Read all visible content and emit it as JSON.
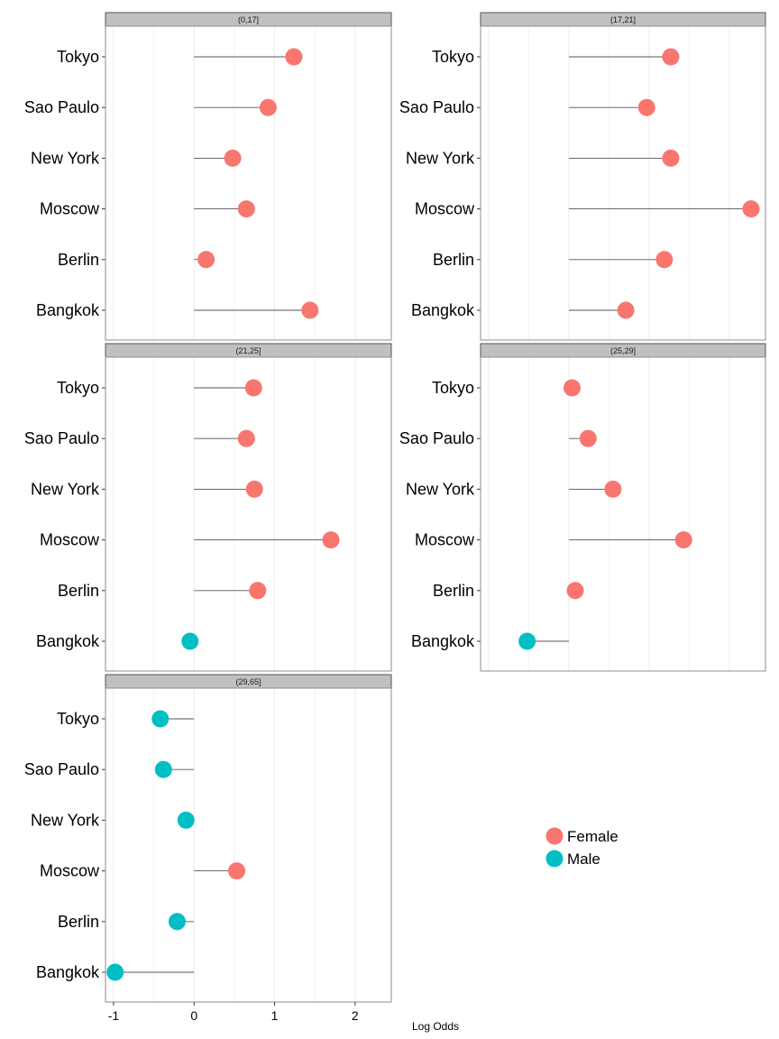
{
  "chart_data": {
    "type": "lollipop",
    "xlabel": "Log Odds",
    "ylabel": "",
    "xlim": [
      -1.1,
      2.45
    ],
    "x_ticks": [
      -1,
      0,
      1,
      2
    ],
    "x_tick_labels": [
      "-1",
      "0",
      "1",
      "2"
    ],
    "categories": [
      "Tokyo",
      "Sao Paulo",
      "New York",
      "Moscow",
      "Berlin",
      "Bangkok"
    ],
    "grid": true,
    "legend": {
      "position": "bottom-right",
      "entries": [
        {
          "label": "Female",
          "color": "#F8766D"
        },
        {
          "label": "Male",
          "color": "#00BFC4"
        }
      ]
    },
    "panels": [
      {
        "strip": "(0,17]",
        "values": [
          1.24,
          0.92,
          0.48,
          0.65,
          0.15,
          1.44
        ],
        "group": [
          "Female",
          "Female",
          "Female",
          "Female",
          "Female",
          "Female"
        ]
      },
      {
        "strip": "(17,21]",
        "values": [
          1.27,
          0.97,
          1.27,
          2.27,
          1.19,
          0.71
        ],
        "group": [
          "Female",
          "Female",
          "Female",
          "Female",
          "Female",
          "Female"
        ]
      },
      {
        "strip": "(21,25]",
        "values": [
          0.74,
          0.65,
          0.75,
          1.7,
          0.79,
          -0.05
        ],
        "group": [
          "Female",
          "Female",
          "Female",
          "Female",
          "Female",
          "Male"
        ]
      },
      {
        "strip": "(25,29]",
        "values": [
          0.04,
          0.24,
          0.55,
          1.43,
          0.08,
          -0.52
        ],
        "group": [
          "Female",
          "Female",
          "Female",
          "Female",
          "Female",
          "Male"
        ]
      },
      {
        "strip": "(29,65]",
        "values": [
          -0.42,
          -0.38,
          -0.1,
          0.53,
          -0.21,
          -0.98
        ],
        "group": [
          "Male",
          "Male",
          "Male",
          "Female",
          "Male",
          "Male"
        ]
      }
    ]
  }
}
